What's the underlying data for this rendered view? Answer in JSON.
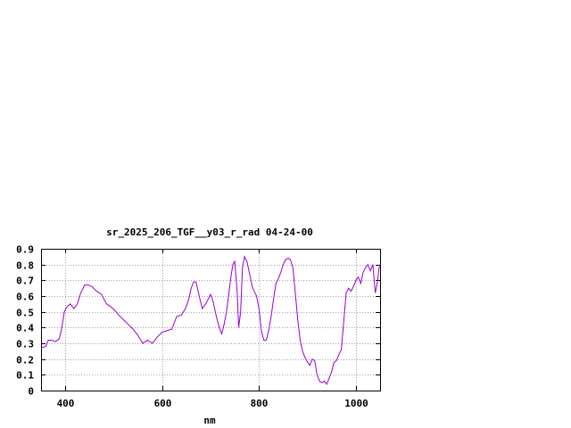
{
  "chart_data": {
    "type": "line",
    "title": "sr_2025_206_TGF__y03_r_rad 04-24-00",
    "xlabel": "nm",
    "ylabel": "",
    "xlim": [
      350,
      1050
    ],
    "ylim": [
      0,
      0.9
    ],
    "xticks": [
      400,
      600,
      800,
      1000
    ],
    "yticks": [
      0,
      0.1,
      0.2,
      0.3,
      0.4,
      0.5,
      0.6,
      0.7,
      0.8,
      0.9
    ],
    "xtick_labels": [
      "400",
      "600",
      "800",
      "1000"
    ],
    "ytick_labels": [
      "0",
      "0.1",
      "0.2",
      "0.3",
      "0.4",
      "0.5",
      "0.6",
      "0.7",
      "0.8",
      "0.9"
    ],
    "grid": true,
    "series": [
      {
        "color": "#9400d3",
        "x": [
          350,
          360,
          365,
          372,
          380,
          388,
          393,
          398,
          403,
          410,
          418,
          425,
          432,
          440,
          448,
          455,
          465,
          475,
          485,
          495,
          502,
          510,
          520,
          530,
          540,
          550,
          560,
          570,
          580,
          590,
          600,
          610,
          620,
          630,
          640,
          648,
          655,
          660,
          665,
          670,
          678,
          683,
          690,
          695,
          700,
          705,
          712,
          718,
          723,
          728,
          733,
          738,
          742,
          746,
          750,
          755,
          758,
          762,
          766,
          770,
          775,
          778,
          782,
          786,
          790,
          795,
          800,
          805,
          810,
          815,
          820,
          825,
          830,
          835,
          840,
          845,
          850,
          855,
          860,
          865,
          870,
          875,
          880,
          885,
          890,
          895,
          900,
          905,
          910,
          915,
          920,
          925,
          930,
          935,
          940,
          945,
          950,
          955,
          960,
          965,
          970,
          975,
          980,
          985,
          990,
          995,
          1000,
          1005,
          1010,
          1015,
          1020,
          1025,
          1030,
          1035,
          1040,
          1042,
          1045,
          1048,
          1050
        ],
        "y": [
          0.27,
          0.28,
          0.32,
          0.32,
          0.31,
          0.33,
          0.4,
          0.5,
          0.53,
          0.55,
          0.52,
          0.55,
          0.62,
          0.67,
          0.67,
          0.66,
          0.63,
          0.61,
          0.55,
          0.53,
          0.51,
          0.48,
          0.45,
          0.42,
          0.39,
          0.35,
          0.3,
          0.32,
          0.3,
          0.34,
          0.37,
          0.38,
          0.39,
          0.47,
          0.48,
          0.52,
          0.58,
          0.65,
          0.69,
          0.69,
          0.58,
          0.52,
          0.55,
          0.58,
          0.61,
          0.57,
          0.47,
          0.4,
          0.36,
          0.42,
          0.5,
          0.62,
          0.72,
          0.8,
          0.82,
          0.62,
          0.4,
          0.5,
          0.78,
          0.85,
          0.82,
          0.78,
          0.72,
          0.66,
          0.63,
          0.6,
          0.52,
          0.38,
          0.32,
          0.32,
          0.38,
          0.47,
          0.58,
          0.68,
          0.71,
          0.75,
          0.8,
          0.83,
          0.84,
          0.83,
          0.78,
          0.62,
          0.45,
          0.32,
          0.25,
          0.21,
          0.18,
          0.16,
          0.2,
          0.19,
          0.1,
          0.06,
          0.05,
          0.06,
          0.04,
          0.08,
          0.12,
          0.18,
          0.19,
          0.23,
          0.26,
          0.44,
          0.62,
          0.65,
          0.63,
          0.66,
          0.7,
          0.72,
          0.68,
          0.75,
          0.78,
          0.8,
          0.76,
          0.8,
          0.62,
          0.65,
          0.7,
          0.78,
          0.8
        ]
      }
    ]
  }
}
